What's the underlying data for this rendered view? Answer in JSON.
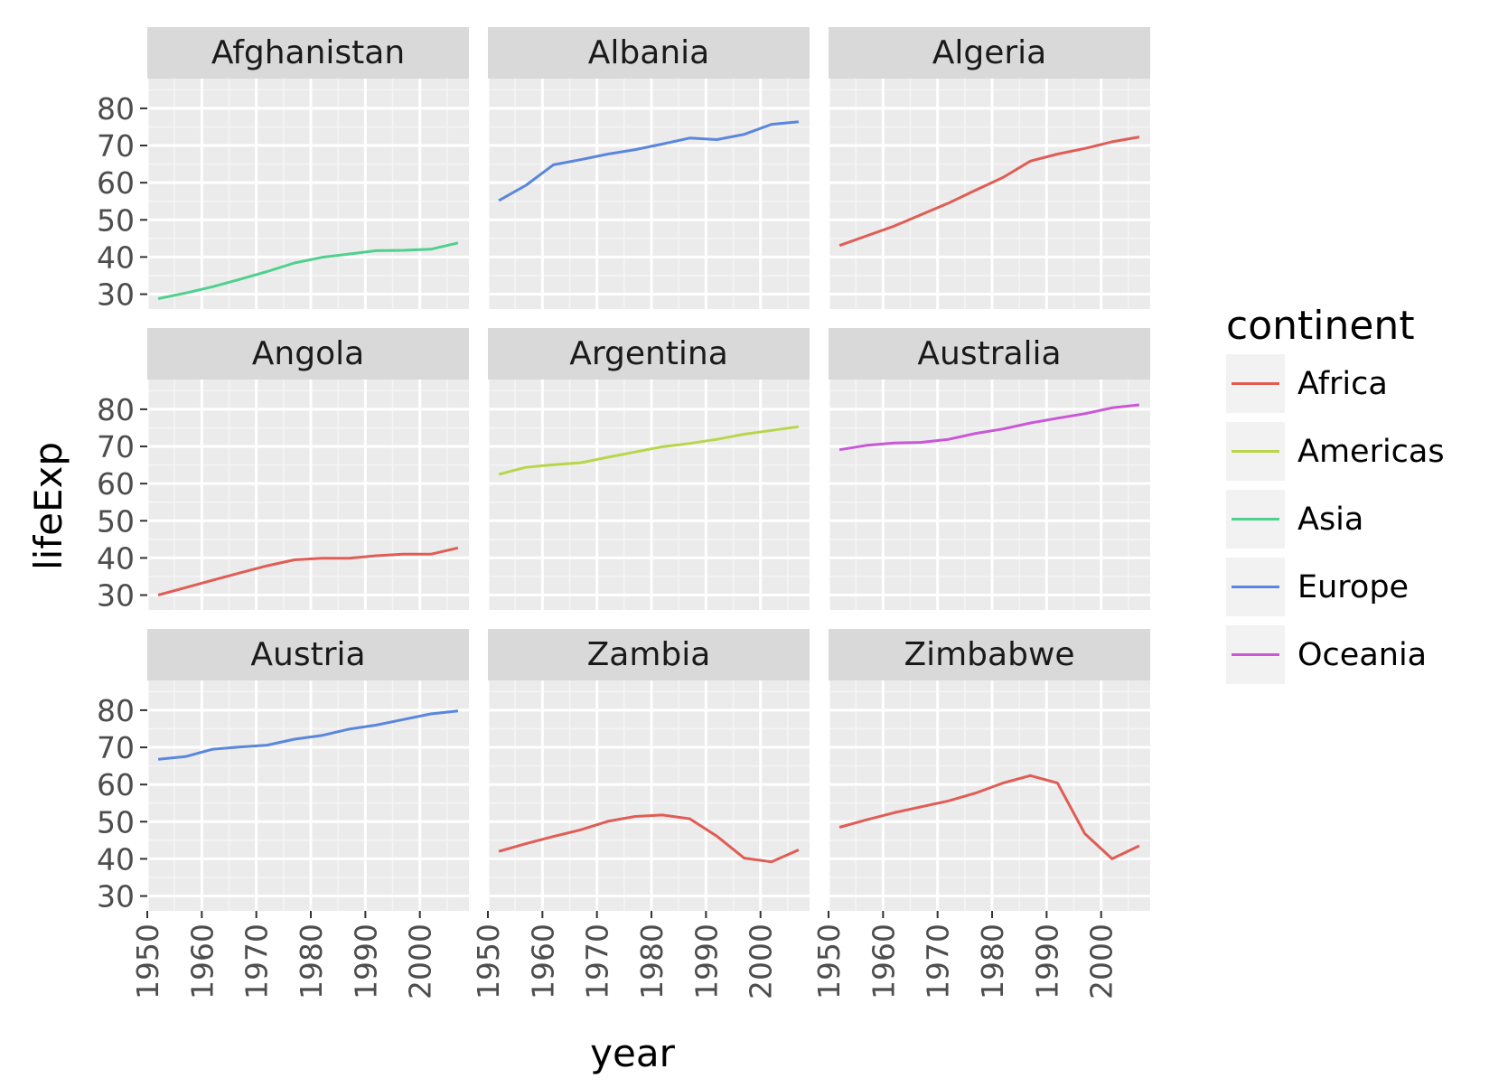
{
  "chart_data": {
    "type": "line",
    "facet_layout": "3x3 grid",
    "xlabel": "year",
    "ylabel": "lifeExp",
    "x_ticks": [
      1950,
      1960,
      1970,
      1980,
      1990,
      2000
    ],
    "y_ticks": [
      30,
      40,
      50,
      60,
      70,
      80
    ],
    "xlim": [
      1950,
      2009
    ],
    "ylim": [
      26,
      88
    ],
    "grid": true,
    "legend": {
      "title": "continent",
      "position": "right",
      "entries": [
        {
          "name": "Africa",
          "color": "#e05d55"
        },
        {
          "name": "Americas",
          "color": "#b8d64b"
        },
        {
          "name": "Asia",
          "color": "#4fd08e"
        },
        {
          "name": "Europe",
          "color": "#5a86dd"
        },
        {
          "name": "Oceania",
          "color": "#c957d8"
        }
      ]
    },
    "years": [
      1952,
      1957,
      1962,
      1967,
      1972,
      1977,
      1982,
      1987,
      1992,
      1997,
      2002,
      2007
    ],
    "panels": [
      {
        "country": "Afghanistan",
        "continent": "Asia",
        "values": [
          28.8,
          30.3,
          32.0,
          34.0,
          36.1,
          38.4,
          39.9,
          40.8,
          41.7,
          41.8,
          42.1,
          43.8
        ]
      },
      {
        "country": "Albania",
        "continent": "Europe",
        "values": [
          55.2,
          59.3,
          64.8,
          66.2,
          67.7,
          68.9,
          70.4,
          72.0,
          71.6,
          73.0,
          75.7,
          76.4
        ]
      },
      {
        "country": "Algeria",
        "continent": "Africa",
        "values": [
          43.1,
          45.7,
          48.3,
          51.4,
          54.5,
          58.0,
          61.4,
          65.8,
          67.7,
          69.2,
          71.0,
          72.3
        ]
      },
      {
        "country": "Angola",
        "continent": "Africa",
        "values": [
          30.0,
          32.0,
          34.0,
          36.0,
          37.9,
          39.5,
          39.9,
          39.9,
          40.6,
          41.0,
          41.0,
          42.7
        ]
      },
      {
        "country": "Argentina",
        "continent": "Americas",
        "values": [
          62.5,
          64.4,
          65.1,
          65.6,
          67.1,
          68.5,
          69.9,
          70.8,
          71.9,
          73.3,
          74.3,
          75.3
        ]
      },
      {
        "country": "Australia",
        "continent": "Oceania",
        "values": [
          69.1,
          70.3,
          70.9,
          71.1,
          71.9,
          73.5,
          74.7,
          76.3,
          77.6,
          78.8,
          80.4,
          81.2
        ]
      },
      {
        "country": "Austria",
        "continent": "Europe",
        "values": [
          66.8,
          67.5,
          69.5,
          70.1,
          70.6,
          72.2,
          73.2,
          74.9,
          76.0,
          77.5,
          79.0,
          79.8
        ]
      },
      {
        "country": "Zambia",
        "continent": "Africa",
        "values": [
          42.0,
          44.1,
          46.0,
          47.8,
          50.1,
          51.4,
          51.8,
          50.8,
          46.1,
          40.2,
          39.2,
          42.4
        ]
      },
      {
        "country": "Zimbabwe",
        "continent": "Africa",
        "values": [
          48.5,
          50.5,
          52.4,
          54.0,
          55.6,
          57.7,
          60.4,
          62.4,
          60.4,
          46.8,
          40.0,
          43.5
        ]
      }
    ]
  }
}
